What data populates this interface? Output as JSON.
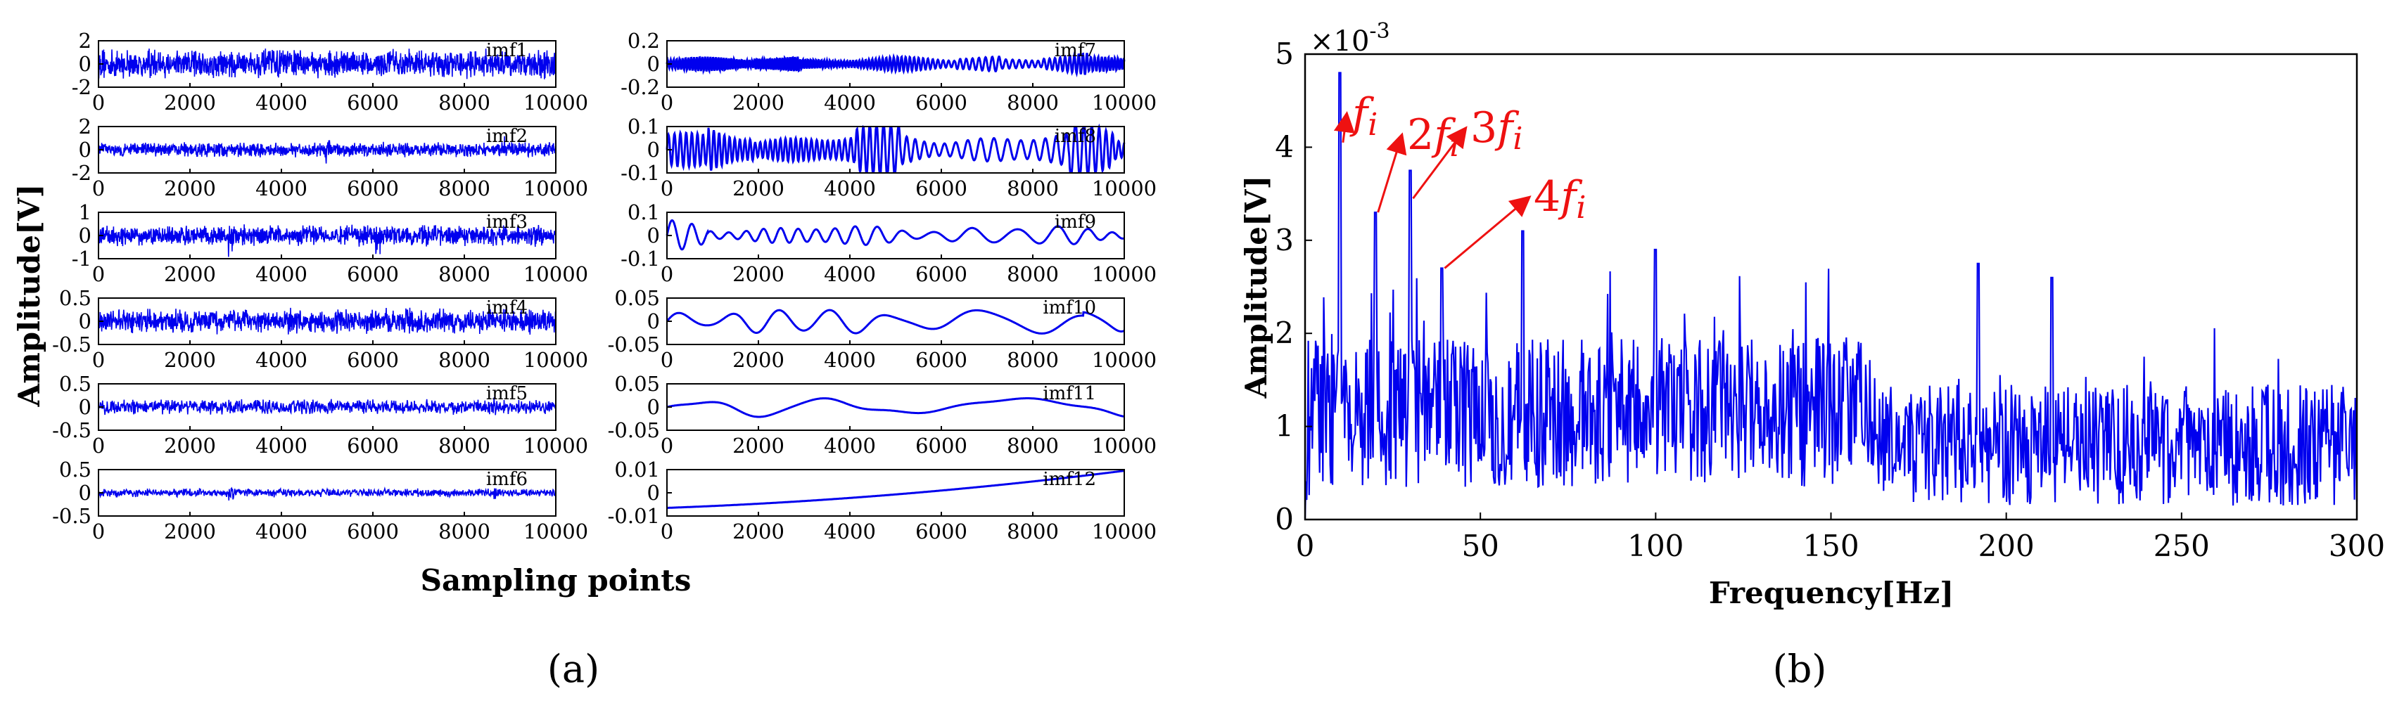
{
  "figure": {
    "panels": [
      "(a)",
      "(b)"
    ]
  },
  "chart_data": [
    {
      "type": "line",
      "panel": "(a)",
      "title": "",
      "xlabel": "Sampling points",
      "ylabel": "Amplitude[V]",
      "xlim": [
        0,
        10000
      ],
      "x_ticks": [
        "0",
        "2000",
        "4000",
        "6000",
        "8000",
        "10000"
      ],
      "series_color": "#0000ee",
      "subplots": [
        {
          "name": "imf1",
          "column": 0,
          "row": 0,
          "ylim": [
            -2,
            2
          ],
          "y_ticks": [
            "2",
            "0",
            "-2"
          ],
          "kind": "noise",
          "amplitude": 1.4,
          "bursts": [],
          "style": "dense"
        },
        {
          "name": "imf2",
          "column": 0,
          "row": 1,
          "ylim": [
            -2,
            2
          ],
          "y_ticks": [
            "2",
            "0",
            "-2"
          ],
          "kind": "noise",
          "amplitude": 0.7,
          "bursts": [
            5000,
            8900
          ],
          "style": "dense"
        },
        {
          "name": "imf3",
          "column": 0,
          "row": 2,
          "ylim": [
            -1,
            1
          ],
          "y_ticks": [
            "1",
            "0",
            "-1"
          ],
          "kind": "noise",
          "amplitude": 0.5,
          "bursts": [
            2900,
            6100
          ],
          "style": "dense"
        },
        {
          "name": "imf4",
          "column": 0,
          "row": 3,
          "ylim": [
            -0.5,
            0.5
          ],
          "y_ticks": [
            "0.5",
            "0",
            "-0.5"
          ],
          "kind": "noise",
          "amplitude": 0.3,
          "bursts": [],
          "style": "dense"
        },
        {
          "name": "imf5",
          "column": 0,
          "row": 4,
          "ylim": [
            -0.5,
            0.5
          ],
          "y_ticks": [
            "0.5",
            "0",
            "-0.5"
          ],
          "kind": "noise",
          "amplitude": 0.18,
          "bursts": [
            5900,
            8600
          ],
          "style": "medium"
        },
        {
          "name": "imf6",
          "column": 0,
          "row": 5,
          "ylim": [
            -0.5,
            0.5
          ],
          "y_ticks": [
            "0.5",
            "0",
            "-0.5"
          ],
          "kind": "noise",
          "amplitude": 0.1,
          "bursts": [
            2900,
            8700
          ],
          "style": "medium"
        },
        {
          "name": "imf7",
          "column": 1,
          "row": 0,
          "ylim": [
            -0.2,
            0.2
          ],
          "y_ticks": [
            "0.2",
            "0",
            "-0.2"
          ],
          "kind": "osc",
          "amplitude": 0.05,
          "cycles": 150,
          "bursts": [
            2400,
            6800,
            8700
          ]
        },
        {
          "name": "imf8",
          "column": 1,
          "row": 1,
          "ylim": [
            -0.1,
            0.1
          ],
          "y_ticks": [
            "0.1",
            "0",
            "-0.1"
          ],
          "kind": "osc",
          "amplitude": 0.06,
          "cycles": 75,
          "bursts": [
            1400,
            4600,
            9300
          ]
        },
        {
          "name": "imf9",
          "column": 1,
          "row": 2,
          "ylim": [
            -0.1,
            0.1
          ],
          "y_ticks": [
            "0.1",
            "0",
            "-0.1"
          ],
          "kind": "osc",
          "amplitude": 0.035,
          "cycles": 22,
          "bursts": [
            400
          ]
        },
        {
          "name": "imf10",
          "column": 1,
          "row": 3,
          "ylim": [
            -0.05,
            0.05
          ],
          "y_ticks": [
            "0.05",
            "0",
            "-0.05"
          ],
          "kind": "osc",
          "amplitude": 0.025,
          "cycles": 8,
          "bursts": [
            9600
          ]
        },
        {
          "name": "imf11",
          "column": 1,
          "row": 4,
          "ylim": [
            -0.05,
            0.05
          ],
          "y_ticks": [
            "0.05",
            "0",
            "-0.05"
          ],
          "kind": "osc",
          "amplitude": 0.02,
          "cycles": 3.2,
          "bursts": []
        },
        {
          "name": "imf12",
          "column": 1,
          "row": 5,
          "ylim": [
            -0.01,
            0.01
          ],
          "y_ticks": [
            "0.01",
            "0",
            "-0.01"
          ],
          "kind": "trend",
          "start": -0.0065,
          "end": 0.0095
        }
      ]
    },
    {
      "type": "line",
      "panel": "(b)",
      "title": "",
      "xlabel": "Frequency[Hz]",
      "ylabel": "Amplitude[V]",
      "y_multiplier": "×10",
      "y_multiplier_exponent": "-3",
      "xlim": [
        0,
        300
      ],
      "ylim": [
        0,
        5
      ],
      "x_ticks": [
        "0",
        "50",
        "100",
        "150",
        "200",
        "250",
        "300"
      ],
      "y_ticks": [
        "0",
        "1",
        "2",
        "3",
        "4",
        "5"
      ],
      "series_color": "#0000ee",
      "peaks": [
        {
          "x": 10,
          "y": 4.8
        },
        {
          "x": 20,
          "y": 3.3
        },
        {
          "x": 30,
          "y": 3.75
        },
        {
          "x": 39,
          "y": 2.7
        },
        {
          "x": 62,
          "y": 3.1
        },
        {
          "x": 100,
          "y": 2.9
        },
        {
          "x": 192,
          "y": 2.75
        },
        {
          "x": 213,
          "y": 2.6
        }
      ],
      "annotations": [
        {
          "coef": "",
          "sub": "i",
          "target_x": 10,
          "target_y": 4.05
        },
        {
          "coef": "2",
          "sub": "i",
          "target_x": 20,
          "target_y": 3.3
        },
        {
          "coef": "3",
          "sub": "i",
          "target_x": 30,
          "target_y": 3.45
        },
        {
          "coef": "4",
          "sub": "i",
          "target_x": 39,
          "target_y": 2.7
        }
      ],
      "annotation_color": "#ee1111"
    }
  ]
}
